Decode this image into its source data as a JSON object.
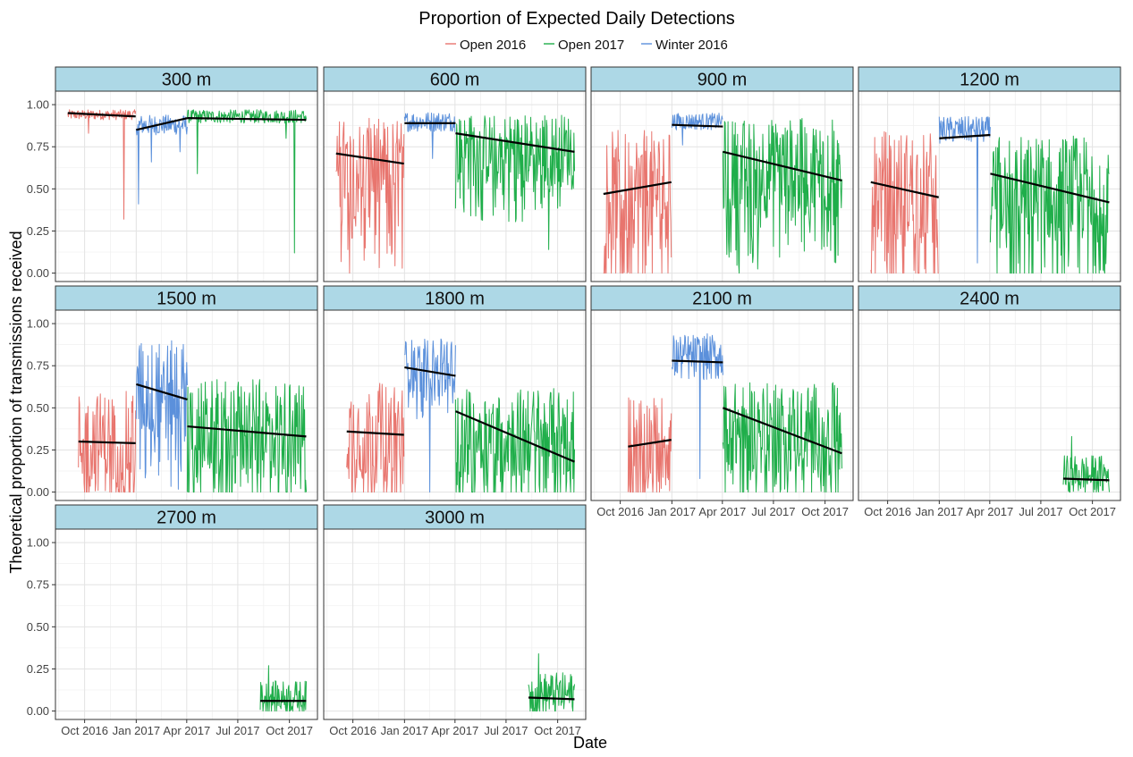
{
  "chart_data": {
    "type": "line",
    "title": "Proportion of Expected Daily Detections",
    "xlabel": "Date",
    "ylabel": "Theoretical proportion of transmissions received",
    "xlim": [
      "2016-08-10",
      "2017-11-20"
    ],
    "ylim": [
      -0.05,
      1.08
    ],
    "y_ticks": [
      0.0,
      0.25,
      0.5,
      0.75,
      1.0
    ],
    "y_tick_labels": [
      "0.00",
      "0.25",
      "0.50",
      "0.75",
      "1.00"
    ],
    "x_ticks": [
      "2016-10-01",
      "2017-01-01",
      "2017-04-01",
      "2017-07-01",
      "2017-10-01"
    ],
    "x_tick_labels": [
      "Oct 2016",
      "Jan 2017",
      "Apr 2017",
      "Jul 2017",
      "Oct 2017"
    ],
    "grid": true,
    "legend": {
      "position": "top",
      "entries": [
        {
          "name": "Open 2016",
          "color": "#E8756E"
        },
        {
          "name": "Open 2017",
          "color": "#1FAE4A"
        },
        {
          "name": "Winter 2016",
          "color": "#5B90DB"
        }
      ]
    },
    "strip_color": "#ADD8E6",
    "trend_color": "#000000",
    "panels": [
      {
        "label": "300 m",
        "series": [
          {
            "name": "Open 2016",
            "start": "2016-09-01",
            "end": "2016-12-31",
            "mean": 0.94,
            "variation": 0.03,
            "dips": [
              {
                "date": "2016-12-10",
                "value": 0.32
              },
              {
                "date": "2016-10-08",
                "value": 0.83
              }
            ]
          },
          {
            "name": "Winter 2016",
            "start": "2017-01-01",
            "end": "2017-04-02",
            "mean": 0.88,
            "variation": 0.06,
            "dips": [
              {
                "date": "2017-01-05",
                "value": 0.41
              },
              {
                "date": "2017-01-28",
                "value": 0.66
              },
              {
                "date": "2017-03-20",
                "value": 0.72
              }
            ]
          },
          {
            "name": "Open 2017",
            "start": "2017-04-02",
            "end": "2017-10-31",
            "mean": 0.93,
            "variation": 0.04,
            "dips": [
              {
                "date": "2017-04-20",
                "value": 0.59
              },
              {
                "date": "2017-10-10",
                "value": 0.12
              },
              {
                "date": "2017-09-25",
                "value": 0.8
              }
            ]
          }
        ],
        "trends": [
          {
            "x": [
              "2016-09-01",
              "2016-12-31"
            ],
            "y": [
              0.95,
              0.93
            ]
          },
          {
            "x": [
              "2017-01-01",
              "2017-04-02"
            ],
            "y": [
              0.85,
              0.92
            ]
          },
          {
            "x": [
              "2017-04-02",
              "2017-10-31"
            ],
            "y": [
              0.92,
              0.91
            ]
          }
        ]
      },
      {
        "label": "600 m",
        "series": [
          {
            "name": "Open 2016",
            "start": "2016-09-01",
            "end": "2016-12-31",
            "mean": 0.62,
            "variation": 0.3,
            "dips": [
              {
                "date": "2016-09-25",
                "value": 0.0
              }
            ]
          },
          {
            "name": "Winter 2016",
            "start": "2017-01-01",
            "end": "2017-04-02",
            "mean": 0.9,
            "variation": 0.06,
            "dips": [
              {
                "date": "2017-02-20",
                "value": 0.68
              }
            ]
          },
          {
            "name": "Open 2017",
            "start": "2017-04-02",
            "end": "2017-10-31",
            "mean": 0.73,
            "variation": 0.22,
            "dips": [
              {
                "date": "2017-09-15",
                "value": 0.14
              }
            ]
          }
        ],
        "trends": [
          {
            "x": [
              "2016-09-01",
              "2016-12-31"
            ],
            "y": [
              0.71,
              0.65
            ]
          },
          {
            "x": [
              "2017-01-01",
              "2017-04-02"
            ],
            "y": [
              0.89,
              0.89
            ]
          },
          {
            "x": [
              "2017-04-02",
              "2017-10-31"
            ],
            "y": [
              0.83,
              0.72
            ]
          }
        ]
      },
      {
        "label": "900 m",
        "series": [
          {
            "name": "Open 2016",
            "start": "2016-09-01",
            "end": "2016-12-31",
            "mean": 0.5,
            "variation": 0.35,
            "dips": [
              {
                "date": "2016-11-10",
                "value": 0.0
              }
            ]
          },
          {
            "name": "Winter 2016",
            "start": "2017-01-01",
            "end": "2017-04-02",
            "mean": 0.9,
            "variation": 0.05,
            "dips": [
              {
                "date": "2017-01-20",
                "value": 0.76
              }
            ]
          },
          {
            "name": "Open 2017",
            "start": "2017-04-02",
            "end": "2017-10-31",
            "mean": 0.62,
            "variation": 0.3,
            "dips": [
              {
                "date": "2017-05-01",
                "value": 0.0
              }
            ]
          }
        ],
        "trends": [
          {
            "x": [
              "2016-09-01",
              "2016-12-31"
            ],
            "y": [
              0.47,
              0.54
            ]
          },
          {
            "x": [
              "2017-01-01",
              "2017-04-02"
            ],
            "y": [
              0.88,
              0.87
            ]
          },
          {
            "x": [
              "2017-04-02",
              "2017-10-31"
            ],
            "y": [
              0.72,
              0.55
            ]
          }
        ]
      },
      {
        "label": "1200 m",
        "series": [
          {
            "name": "Open 2016",
            "start": "2016-09-01",
            "end": "2016-12-31",
            "mean": 0.5,
            "variation": 0.35,
            "dips": [
              {
                "date": "2016-09-30",
                "value": 0.0
              }
            ]
          },
          {
            "name": "Winter 2016",
            "start": "2017-01-01",
            "end": "2017-04-02",
            "mean": 0.85,
            "variation": 0.08,
            "dips": [
              {
                "date": "2017-03-10",
                "value": 0.06
              }
            ]
          },
          {
            "name": "Open 2017",
            "start": "2017-04-02",
            "end": "2017-10-31",
            "mean": 0.5,
            "variation": 0.32,
            "dips": [
              {
                "date": "2017-05-10",
                "value": 0.0
              }
            ]
          }
        ],
        "trends": [
          {
            "x": [
              "2016-09-01",
              "2016-12-31"
            ],
            "y": [
              0.54,
              0.45
            ]
          },
          {
            "x": [
              "2017-01-01",
              "2017-04-02"
            ],
            "y": [
              0.8,
              0.82
            ]
          },
          {
            "x": [
              "2017-04-02",
              "2017-10-31"
            ],
            "y": [
              0.59,
              0.42
            ]
          }
        ]
      },
      {
        "label": "1500 m",
        "series": [
          {
            "name": "Open 2016",
            "start": "2016-09-20",
            "end": "2016-12-31",
            "mean": 0.3,
            "variation": 0.3,
            "dips": [
              {
                "date": "2016-10-01",
                "value": 0.0
              }
            ]
          },
          {
            "name": "Winter 2016",
            "start": "2017-01-01",
            "end": "2017-04-02",
            "mean": 0.6,
            "variation": 0.3,
            "dips": [
              {
                "date": "2017-02-10",
                "value": 0.1
              }
            ]
          },
          {
            "name": "Open 2017",
            "start": "2017-04-02",
            "end": "2017-10-31",
            "mean": 0.37,
            "variation": 0.3,
            "dips": [
              {
                "date": "2017-06-01",
                "value": 0.0
              }
            ]
          }
        ],
        "trends": [
          {
            "x": [
              "2016-09-20",
              "2016-12-31"
            ],
            "y": [
              0.3,
              0.29
            ]
          },
          {
            "x": [
              "2017-01-01",
              "2017-04-02"
            ],
            "y": [
              0.64,
              0.55
            ]
          },
          {
            "x": [
              "2017-04-02",
              "2017-10-31"
            ],
            "y": [
              0.39,
              0.33
            ]
          }
        ]
      },
      {
        "label": "1800 m",
        "series": [
          {
            "name": "Open 2016",
            "start": "2016-09-20",
            "end": "2016-12-31",
            "mean": 0.35,
            "variation": 0.3,
            "dips": [
              {
                "date": "2016-10-05",
                "value": 0.0
              }
            ]
          },
          {
            "name": "Winter 2016",
            "start": "2017-01-01",
            "end": "2017-04-02",
            "mean": 0.75,
            "variation": 0.16,
            "dips": [
              {
                "date": "2017-02-15",
                "value": 0.0
              }
            ]
          },
          {
            "name": "Open 2017",
            "start": "2017-04-02",
            "end": "2017-10-31",
            "mean": 0.35,
            "variation": 0.27,
            "dips": [
              {
                "date": "2017-07-10",
                "value": 0.0
              }
            ]
          }
        ],
        "trends": [
          {
            "x": [
              "2016-09-20",
              "2016-12-31"
            ],
            "y": [
              0.36,
              0.34
            ]
          },
          {
            "x": [
              "2017-01-01",
              "2017-04-02"
            ],
            "y": [
              0.74,
              0.69
            ]
          },
          {
            "x": [
              "2017-04-02",
              "2017-10-31"
            ],
            "y": [
              0.48,
              0.18
            ]
          }
        ]
      },
      {
        "label": "2100 m",
        "series": [
          {
            "name": "Open 2016",
            "start": "2016-10-15",
            "end": "2016-12-31",
            "mean": 0.3,
            "variation": 0.28,
            "dips": [
              {
                "date": "2016-11-01",
                "value": 0.0
              }
            ]
          },
          {
            "name": "Winter 2016",
            "start": "2017-01-01",
            "end": "2017-04-02",
            "mean": 0.8,
            "variation": 0.14,
            "dips": [
              {
                "date": "2017-02-20",
                "value": 0.08
              }
            ]
          },
          {
            "name": "Open 2017",
            "start": "2017-04-02",
            "end": "2017-10-31",
            "mean": 0.38,
            "variation": 0.27,
            "dips": [
              {
                "date": "2017-08-10",
                "value": 0.0
              }
            ]
          }
        ],
        "trends": [
          {
            "x": [
              "2016-10-15",
              "2016-12-31"
            ],
            "y": [
              0.27,
              0.31
            ]
          },
          {
            "x": [
              "2017-01-01",
              "2017-04-02"
            ],
            "y": [
              0.78,
              0.77
            ]
          },
          {
            "x": [
              "2017-04-02",
              "2017-10-31"
            ],
            "y": [
              0.5,
              0.23
            ]
          }
        ]
      },
      {
        "label": "2400 m",
        "series": [
          {
            "name": "Open 2017",
            "start": "2017-08-10",
            "end": "2017-10-31",
            "mean": 0.1,
            "variation": 0.12,
            "dips": [
              {
                "date": "2017-08-25",
                "value": 0.33
              }
            ]
          }
        ],
        "trends": [
          {
            "x": [
              "2017-08-10",
              "2017-10-31"
            ],
            "y": [
              0.08,
              0.07
            ]
          }
        ]
      },
      {
        "label": "2700 m",
        "series": [
          {
            "name": "Open 2017",
            "start": "2017-08-10",
            "end": "2017-10-31",
            "mean": 0.08,
            "variation": 0.1,
            "dips": [
              {
                "date": "2017-08-25",
                "value": 0.27
              }
            ]
          }
        ],
        "trends": [
          {
            "x": [
              "2017-08-10",
              "2017-10-31"
            ],
            "y": [
              0.06,
              0.06
            ]
          }
        ]
      },
      {
        "label": "3000 m",
        "series": [
          {
            "name": "Open 2017",
            "start": "2017-08-10",
            "end": "2017-10-31",
            "mean": 0.1,
            "variation": 0.13,
            "dips": [
              {
                "date": "2017-08-28",
                "value": 0.34
              }
            ]
          }
        ],
        "trends": [
          {
            "x": [
              "2017-08-10",
              "2017-10-31"
            ],
            "y": [
              0.08,
              0.07
            ]
          }
        ]
      }
    ]
  }
}
